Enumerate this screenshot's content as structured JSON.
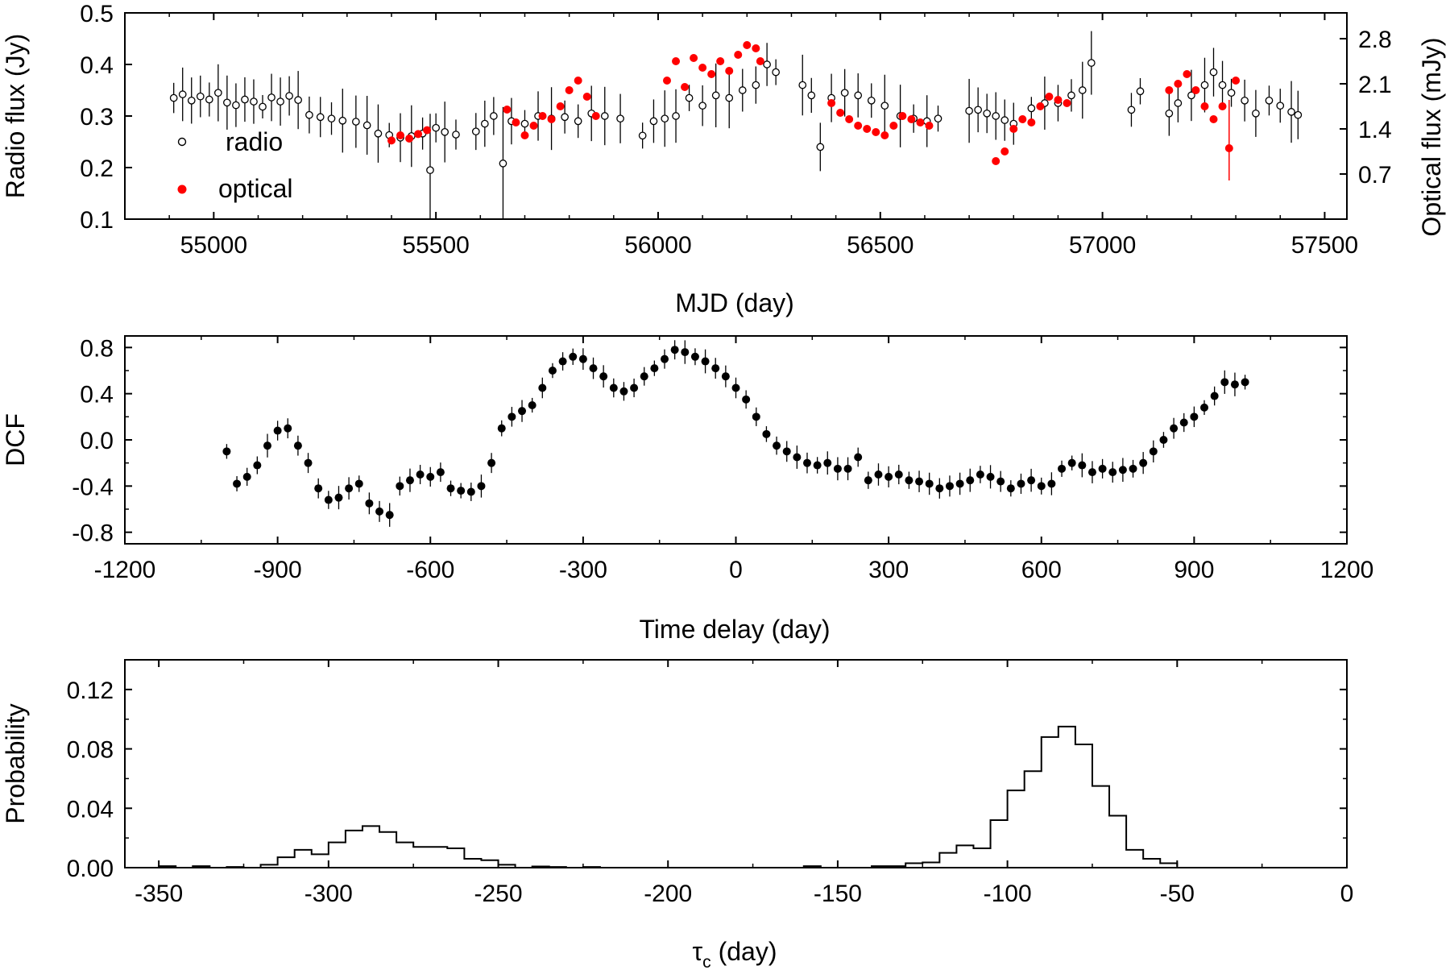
{
  "colors": {
    "radio_face": "#ffffff",
    "radio_edge": "#000000",
    "optical": "#ff0000",
    "dcf": "#000000",
    "axis": "#000000"
  },
  "chart_data": [
    {
      "type": "scatter",
      "title": "",
      "xlabel": "MJD (day)",
      "ylabel": "Radio flux (Jy)",
      "ylabel_right": "Optical flux (mJy)",
      "xlim": [
        54800,
        57550
      ],
      "ylim": [
        0.1,
        0.5
      ],
      "ylim_right": [
        0.0,
        3.2
      ],
      "xticks": [
        55000,
        55500,
        56000,
        56500,
        57000,
        57500
      ],
      "xtick_labels": [
        "55000",
        "55500",
        "56000",
        "56500",
        "57000",
        "57500"
      ],
      "yticks": [
        0.1,
        0.2,
        0.3,
        0.4,
        0.5
      ],
      "ytick_labels": [
        "0.1",
        "0.2",
        "0.3",
        "0.4",
        "0.5"
      ],
      "yticks_right": [
        0.7,
        1.4,
        2.1,
        2.8
      ],
      "ytick_labels_right": [
        "0.7",
        "1.4",
        "2.1",
        "2.8"
      ],
      "legend": {
        "position": "left",
        "entries": [
          "radio",
          "optical"
        ]
      },
      "series": [
        {
          "name": "radio",
          "marker": "open-circle",
          "axis": "left",
          "x": [
            54910,
            54930,
            54950,
            54970,
            54990,
            55010,
            55030,
            55050,
            55070,
            55090,
            55110,
            55130,
            55150,
            55170,
            55190,
            55215,
            55240,
            55265,
            55290,
            55320,
            55345,
            55370,
            55395,
            55420,
            55445,
            55470,
            55487,
            55500,
            55520,
            55545,
            55590,
            55610,
            55630,
            55651,
            55670,
            55700,
            55730,
            55760,
            55790,
            55820,
            55850,
            55880,
            55915,
            55965,
            55990,
            56015,
            56040,
            56070,
            56100,
            56130,
            56160,
            56190,
            56220,
            56245,
            56265,
            56325,
            56345,
            56365,
            56390,
            56420,
            56450,
            56480,
            56510,
            56545,
            56575,
            56605,
            56630,
            56700,
            56720,
            56740,
            56760,
            56780,
            56800,
            56840,
            56870,
            56900,
            56930,
            56955,
            56975,
            57065,
            57085,
            57150,
            57170,
            57200,
            57230,
            57250,
            57270,
            57290,
            57320,
            57345,
            57375,
            57400,
            57425,
            57440
          ],
          "y": [
            0.335,
            0.342,
            0.33,
            0.338,
            0.332,
            0.345,
            0.326,
            0.321,
            0.332,
            0.328,
            0.318,
            0.336,
            0.328,
            0.339,
            0.331,
            0.302,
            0.298,
            0.295,
            0.291,
            0.289,
            0.282,
            0.266,
            0.263,
            0.258,
            0.261,
            0.266,
            0.195,
            0.277,
            0.269,
            0.264,
            0.27,
            0.285,
            0.3,
            0.208,
            0.29,
            0.285,
            0.3,
            0.295,
            0.298,
            0.29,
            0.305,
            0.3,
            0.295,
            0.262,
            0.29,
            0.295,
            0.3,
            0.335,
            0.32,
            0.34,
            0.335,
            0.35,
            0.36,
            0.4,
            0.385,
            0.36,
            0.34,
            0.24,
            0.335,
            0.345,
            0.34,
            0.33,
            0.32,
            0.3,
            0.295,
            0.29,
            0.295,
            0.31,
            0.312,
            0.305,
            0.3,
            0.292,
            0.285,
            0.315,
            0.325,
            0.325,
            0.34,
            0.35,
            0.403,
            0.312,
            0.348,
            0.305,
            0.325,
            0.34,
            0.36,
            0.385,
            0.36,
            0.345,
            0.33,
            0.305,
            0.33,
            0.32,
            0.308,
            0.302
          ]
        },
        {
          "name": "optical",
          "marker": "filled-circle",
          "axis": "right",
          "x": [
            55400,
            55420,
            55440,
            55460,
            55480,
            55660,
            55680,
            55700,
            55720,
            55740,
            55760,
            55780,
            55800,
            55820,
            55840,
            55860,
            56020,
            56040,
            56060,
            56080,
            56100,
            56120,
            56140,
            56160,
            56180,
            56200,
            56220,
            56230,
            56390,
            56410,
            56430,
            56450,
            56470,
            56490,
            56510,
            56530,
            56550,
            56570,
            56590,
            56610,
            56760,
            56780,
            56800,
            56820,
            56840,
            56860,
            56880,
            56900,
            56920,
            57150,
            57170,
            57190,
            57210,
            57230,
            57250,
            57270,
            57285,
            57300
          ],
          "y": [
            1.22,
            1.3,
            1.25,
            1.32,
            1.38,
            1.7,
            1.5,
            1.3,
            1.45,
            1.6,
            1.55,
            1.75,
            2.0,
            2.15,
            1.9,
            1.6,
            2.15,
            2.45,
            2.05,
            2.5,
            2.35,
            2.25,
            2.45,
            2.3,
            2.55,
            2.7,
            2.65,
            2.45,
            1.8,
            1.65,
            1.55,
            1.45,
            1.4,
            1.35,
            1.3,
            1.45,
            1.6,
            1.55,
            1.5,
            1.45,
            0.9,
            1.05,
            1.4,
            1.55,
            1.5,
            1.75,
            1.9,
            1.85,
            1.8,
            2.0,
            2.1,
            2.25,
            2.0,
            1.75,
            1.55,
            1.75,
            1.1,
            2.15
          ]
        }
      ]
    },
    {
      "type": "scatter",
      "title": "",
      "xlabel": "Time delay (day)",
      "ylabel": "DCF",
      "xlim": [
        -1200,
        1200
      ],
      "ylim": [
        -0.9,
        0.9
      ],
      "xticks": [
        -1200,
        -900,
        -600,
        -300,
        0,
        300,
        600,
        900,
        1200
      ],
      "xtick_labels": [
        "-1200",
        "-900",
        "-600",
        "-300",
        "0",
        "300",
        "600",
        "900",
        "1200"
      ],
      "yticks": [
        -0.8,
        -0.4,
        0.0,
        0.4,
        0.8
      ],
      "ytick_labels": [
        "-0.8",
        "-0.4",
        "0.0",
        "0.4",
        "0.8"
      ],
      "series": [
        {
          "name": "DCF",
          "marker": "filled-circle",
          "x": [
            -1000,
            -980,
            -960,
            -940,
            -920,
            -900,
            -880,
            -860,
            -840,
            -820,
            -800,
            -780,
            -760,
            -740,
            -720,
            -700,
            -680,
            -660,
            -640,
            -620,
            -600,
            -580,
            -560,
            -540,
            -520,
            -500,
            -480,
            -460,
            -440,
            -420,
            -400,
            -380,
            -360,
            -340,
            -320,
            -300,
            -280,
            -260,
            -240,
            -220,
            -200,
            -180,
            -160,
            -140,
            -120,
            -100,
            -80,
            -60,
            -40,
            -20,
            0,
            20,
            40,
            60,
            80,
            100,
            120,
            140,
            160,
            180,
            200,
            220,
            240,
            260,
            280,
            300,
            320,
            340,
            360,
            380,
            400,
            420,
            440,
            460,
            480,
            500,
            520,
            540,
            560,
            580,
            600,
            620,
            640,
            660,
            680,
            700,
            720,
            740,
            760,
            780,
            800,
            820,
            840,
            860,
            880,
            900,
            920,
            940,
            960,
            980,
            1000
          ],
          "y": [
            -0.1,
            -0.38,
            -0.32,
            -0.22,
            -0.05,
            0.08,
            0.1,
            -0.05,
            -0.2,
            -0.42,
            -0.52,
            -0.5,
            -0.42,
            -0.38,
            -0.55,
            -0.62,
            -0.65,
            -0.4,
            -0.35,
            -0.3,
            -0.32,
            -0.28,
            -0.42,
            -0.44,
            -0.45,
            -0.4,
            -0.2,
            0.1,
            0.2,
            0.25,
            0.3,
            0.45,
            0.6,
            0.68,
            0.72,
            0.7,
            0.62,
            0.55,
            0.45,
            0.42,
            0.45,
            0.55,
            0.62,
            0.7,
            0.78,
            0.76,
            0.72,
            0.68,
            0.62,
            0.55,
            0.45,
            0.35,
            0.2,
            0.05,
            -0.05,
            -0.1,
            -0.15,
            -0.2,
            -0.22,
            -0.2,
            -0.25,
            -0.25,
            -0.15,
            -0.35,
            -0.3,
            -0.32,
            -0.3,
            -0.35,
            -0.36,
            -0.38,
            -0.42,
            -0.4,
            -0.38,
            -0.35,
            -0.3,
            -0.32,
            -0.36,
            -0.42,
            -0.38,
            -0.35,
            -0.4,
            -0.38,
            -0.25,
            -0.2,
            -0.22,
            -0.28,
            -0.25,
            -0.28,
            -0.26,
            -0.25,
            -0.2,
            -0.1,
            0.0,
            0.1,
            0.15,
            0.2,
            0.28,
            0.38,
            0.5,
            0.48,
            0.5
          ]
        }
      ]
    },
    {
      "type": "histogram",
      "title": "",
      "xlabel": "τc (day)",
      "ylabel": "Probability",
      "xlim": [
        -360,
        0
      ],
      "ylim": [
        0,
        0.14
      ],
      "xticks": [
        -350,
        -300,
        -250,
        -200,
        -150,
        -100,
        -50,
        0
      ],
      "xtick_labels": [
        "-350",
        "-300",
        "-250",
        "-200",
        "-150",
        "-100",
        "-50",
        "0"
      ],
      "yticks": [
        0.0,
        0.04,
        0.08,
        0.12
      ],
      "ytick_labels": [
        "0.00",
        "0.04",
        "0.08",
        "0.12"
      ],
      "bin_edges": [
        -350,
        -345,
        -340,
        -335,
        -330,
        -325,
        -320,
        -315,
        -310,
        -305,
        -300,
        -295,
        -290,
        -285,
        -280,
        -275,
        -270,
        -265,
        -260,
        -255,
        -250,
        -245,
        -240,
        -235,
        -230,
        -225,
        -220,
        -215,
        -210,
        -205,
        -200,
        -195,
        -190,
        -185,
        -180,
        -175,
        -170,
        -165,
        -160,
        -155,
        -150,
        -145,
        -140,
        -135,
        -130,
        -125,
        -120,
        -115,
        -110,
        -105,
        -100,
        -95,
        -90,
        -85,
        -80,
        -75,
        -70,
        -65,
        -60,
        -55,
        -50
      ],
      "values": [
        0.001,
        0.0,
        0.001,
        0.0,
        0.0005,
        0.0,
        0.002,
        0.007,
        0.012,
        0.009,
        0.017,
        0.025,
        0.028,
        0.024,
        0.017,
        0.014,
        0.014,
        0.013,
        0.006,
        0.005,
        0.002,
        0.0,
        0.0008,
        0.0005,
        0.0,
        0.0005,
        0.0,
        0.0,
        0.0,
        0.0,
        0.0,
        0.0,
        0.0,
        0.0,
        0.0,
        0.0,
        0.0,
        0.0,
        0.001,
        0.0,
        0.0,
        0.0,
        0.001,
        0.001,
        0.003,
        0.0035,
        0.01,
        0.015,
        0.013,
        0.032,
        0.052,
        0.065,
        0.088,
        0.095,
        0.083,
        0.055,
        0.035,
        0.012,
        0.006,
        0.003,
        0.001
      ]
    }
  ]
}
